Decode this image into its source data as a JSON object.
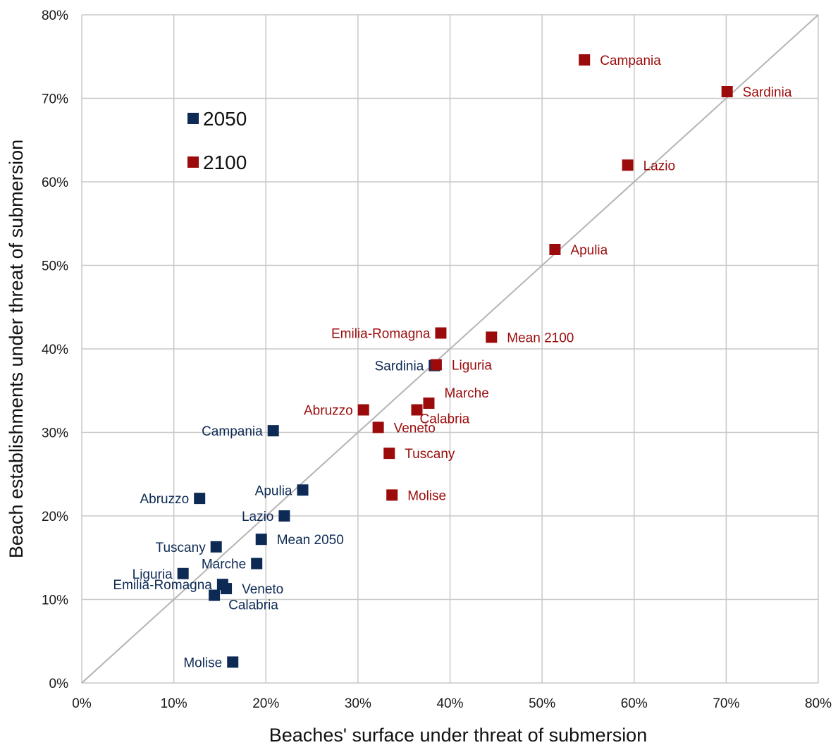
{
  "colors": {
    "s2050": "#0d2a55",
    "s2100": "#9b0b0b",
    "grid": "#c8c8c8",
    "diagonal": "#b4b4b4"
  },
  "chart_data": {
    "type": "scatter",
    "xlabel": "Beaches' surface under threat of submersion",
    "ylabel": "Beach establishments under threat of submersion",
    "xlim": [
      0,
      80
    ],
    "ylim": [
      0,
      80
    ],
    "x_unit": "%",
    "y_unit": "%",
    "xticks": [
      "0%",
      "10%",
      "20%",
      "30%",
      "40%",
      "50%",
      "60%",
      "70%",
      "80%"
    ],
    "yticks": [
      "0%",
      "10%",
      "20%",
      "30%",
      "40%",
      "50%",
      "60%",
      "70%",
      "80%"
    ],
    "grid": true,
    "reference_line": "y = x",
    "legend": {
      "placement": "top-left",
      "entries": [
        "2050",
        "2100"
      ]
    },
    "series": [
      {
        "name": "2050",
        "color": "#0d2a55",
        "points": [
          {
            "label": "Campania",
            "x": 20.8,
            "y": 30.2,
            "anchor": "left"
          },
          {
            "label": "Sardinia",
            "x": 38.3,
            "y": 38.0,
            "anchor": "left"
          },
          {
            "label": "Apulia",
            "x": 24.0,
            "y": 23.1,
            "anchor": "left"
          },
          {
            "label": "Abruzzo",
            "x": 12.8,
            "y": 22.1,
            "anchor": "left"
          },
          {
            "label": "Lazio",
            "x": 22.0,
            "y": 20.0,
            "anchor": "left"
          },
          {
            "label": "Mean 2050",
            "x": 19.5,
            "y": 17.2,
            "anchor": "right"
          },
          {
            "label": "Tuscany",
            "x": 14.6,
            "y": 16.3,
            "anchor": "left"
          },
          {
            "label": "Marche",
            "x": 19.0,
            "y": 14.3,
            "anchor": "left"
          },
          {
            "label": "Liguria",
            "x": 11.0,
            "y": 13.1,
            "anchor": "left"
          },
          {
            "label": "Emilia-Romagna",
            "x": 15.3,
            "y": 11.8,
            "anchor": "left"
          },
          {
            "label": "Veneto",
            "x": 15.7,
            "y": 11.3,
            "anchor": "right"
          },
          {
            "label": "Calabria",
            "x": 14.4,
            "y": 10.5,
            "anchor": "below"
          },
          {
            "label": "Molise",
            "x": 16.4,
            "y": 2.5,
            "anchor": "left"
          }
        ]
      },
      {
        "name": "2100",
        "color": "#9b0b0b",
        "points": [
          {
            "label": "Campania",
            "x": 54.6,
            "y": 74.6,
            "anchor": "right"
          },
          {
            "label": "Sardinia",
            "x": 70.1,
            "y": 70.8,
            "anchor": "right"
          },
          {
            "label": "Lazio",
            "x": 59.3,
            "y": 62.0,
            "anchor": "right"
          },
          {
            "label": "Apulia",
            "x": 51.4,
            "y": 51.9,
            "anchor": "right"
          },
          {
            "label": "Emilia-Romagna",
            "x": 39.0,
            "y": 41.9,
            "anchor": "left"
          },
          {
            "label": "Mean 2100",
            "x": 44.5,
            "y": 41.4,
            "anchor": "right"
          },
          {
            "label": "Liguria",
            "x": 38.5,
            "y": 38.1,
            "anchor": "right"
          },
          {
            "label": "Marche",
            "x": 37.7,
            "y": 33.5,
            "anchor": "above-right"
          },
          {
            "label": "Calabria",
            "x": 36.4,
            "y": 32.7,
            "anchor": "below-right"
          },
          {
            "label": "Abruzzo",
            "x": 30.6,
            "y": 32.7,
            "anchor": "left"
          },
          {
            "label": "Veneto",
            "x": 32.2,
            "y": 30.6,
            "anchor": "right"
          },
          {
            "label": "Tuscany",
            "x": 33.4,
            "y": 27.5,
            "anchor": "right"
          },
          {
            "label": "Molise",
            "x": 33.7,
            "y": 22.5,
            "anchor": "right"
          }
        ]
      }
    ]
  }
}
